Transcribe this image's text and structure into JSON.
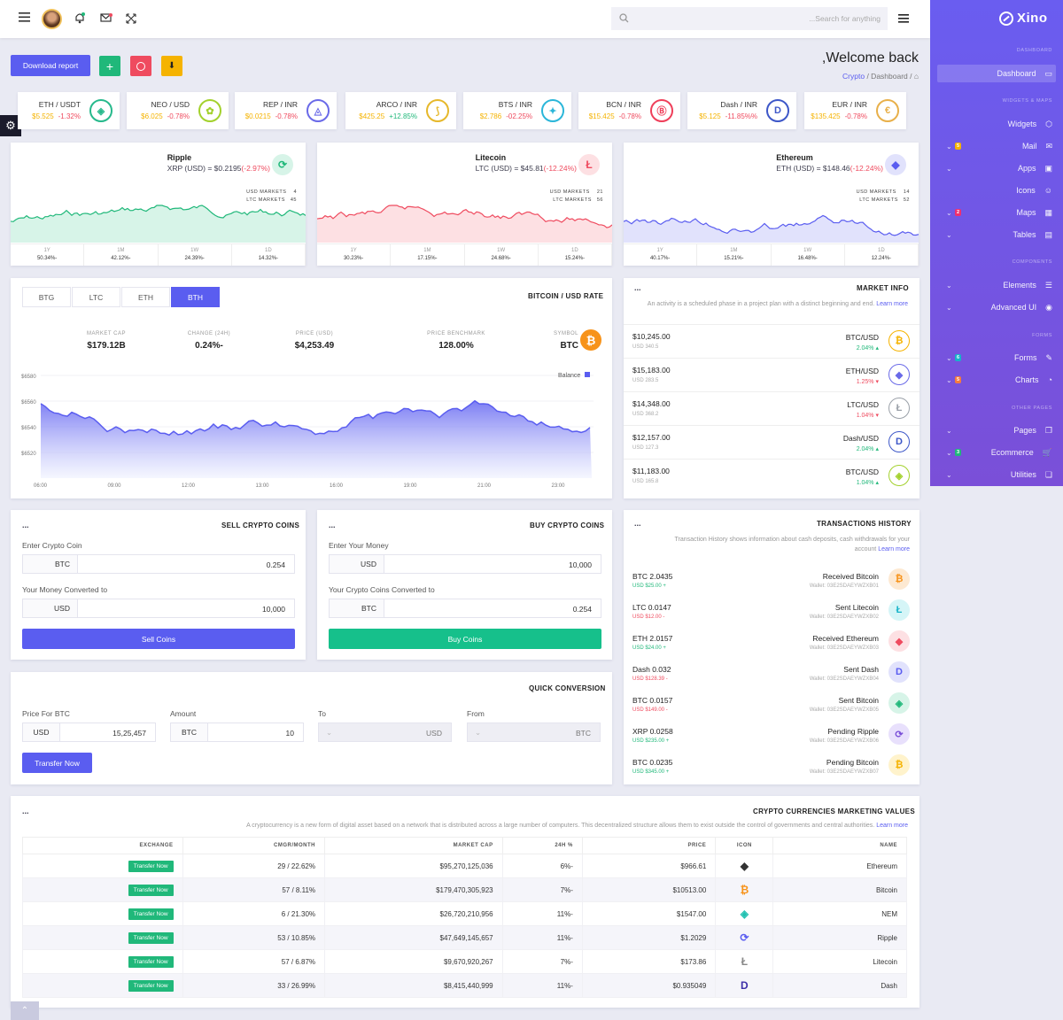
{
  "topbar": {
    "search_placeholder": "...Search for anything"
  },
  "sidebar": {
    "brand": "Xino",
    "sections": {
      "dashboard": "DASHBOARD",
      "widgets": "WIDGETS & MAPS",
      "components": "COMPONENTS",
      "forms": "FORMS",
      "other": "OTHER PAGES"
    },
    "items": [
      {
        "label": "Dashboard"
      },
      {
        "label": "Widgets"
      },
      {
        "label": "Mail",
        "badge": "5"
      },
      {
        "label": "Apps"
      },
      {
        "label": "Icons"
      },
      {
        "label": "Maps",
        "badge": "2"
      },
      {
        "label": "Tables"
      },
      {
        "label": "Elements"
      },
      {
        "label": "Advanced UI"
      },
      {
        "label": "Forms",
        "badge": "6"
      },
      {
        "label": "Charts",
        "badge": "5"
      },
      {
        "label": "Pages"
      },
      {
        "label": "Ecommerce",
        "badge": "3"
      },
      {
        "label": "Utilities"
      }
    ]
  },
  "header": {
    "download": "Download report",
    "welcome": ",Welcome back",
    "crumb1": "Crypto",
    "crumb2": "/ Dashboard /"
  },
  "tickers": [
    {
      "pair": "ETH / USDT",
      "price": "$5.525",
      "change": "-1.32%",
      "color": "#27b98c"
    },
    {
      "pair": "NEO / USD",
      "price": "$6.025",
      "change": "-0.78%",
      "color": "#a3d12d"
    },
    {
      "pair": "REP / INR",
      "price": "$0.0215",
      "change": "-0.78%",
      "color": "#6a6ae8"
    },
    {
      "pair": "ARCO / INR",
      "price": "$425.25",
      "change": "+12.85%",
      "color": "#e6b82b"
    },
    {
      "pair": "BTS / INR",
      "price": "$2.786",
      "change": "-02.25%",
      "color": "#2bb6d9"
    },
    {
      "pair": "BCN / INR",
      "price": "$15.425",
      "change": "-0.78%",
      "color": "#ef3f5a"
    },
    {
      "pair": "Dash / INR",
      "price": "$5.125",
      "change": "-11.85%%",
      "color": "#3d57c8"
    },
    {
      "pair": "EUR / INR",
      "price": "$135.425",
      "change": "-0.78%",
      "color": "#e8b04a"
    }
  ],
  "mini": [
    {
      "name": "Ripple",
      "rate": "XRP (USD) = $0.2195",
      "chg": "(-2.97%)",
      "usd": "4",
      "ltc": "45",
      "stats": [
        [
          "1Y",
          "50.34%-"
        ],
        [
          "1M",
          "42.12%-"
        ],
        [
          "1W",
          "24.39%-"
        ],
        [
          "1D",
          "14.32%-"
        ]
      ]
    },
    {
      "name": "Litecoin",
      "rate": "LTC (USD) = $45.81",
      "chg": "(-12.24%)",
      "usd": "21",
      "ltc": "56",
      "stats": [
        [
          "1Y",
          "30.23%-"
        ],
        [
          "1M",
          "17.15%-"
        ],
        [
          "1W",
          "24.68%-"
        ],
        [
          "1D",
          "15.24%-"
        ]
      ]
    },
    {
      "name": "Ethereum",
      "rate": "ETH (USD) = $148.46",
      "chg": "(-12.24%)",
      "usd": "14",
      "ltc": "52",
      "stats": [
        [
          "1Y",
          "40.17%-"
        ],
        [
          "1M",
          "15.21%-"
        ],
        [
          "1W",
          "16.48%-"
        ],
        [
          "1D",
          "12.24%-"
        ]
      ]
    }
  ],
  "markets_label": {
    "usd": "USD MARKETS",
    "ltc": "LTC MARKETS"
  },
  "btc": {
    "tabs": [
      "BTG",
      "LTC",
      "ETH",
      "BTH"
    ],
    "title": "BITCOIN / USD RATE",
    "stats": [
      [
        "MARKET CAP",
        "$179.12B"
      ],
      [
        "CHANGE (24H)",
        "0.24%-"
      ],
      [
        "PRICE (USD)",
        "$4,253.49"
      ],
      [
        "PRICE BENCHMARK",
        "128.00%"
      ],
      [
        "SYMBOL",
        "BTC"
      ]
    ],
    "legend": "Balance",
    "yticks": [
      "$6580",
      "$6560",
      "$6540",
      "$6520"
    ],
    "xticks": [
      "06:00",
      "09:00",
      "12:00",
      "13:00",
      "16:00",
      "19:00",
      "21:00",
      "23:00"
    ]
  },
  "market_info": {
    "dots": "...",
    "title": "MARKET INFO",
    "desc": "An activity is a scheduled phase in a project plan with a distinct beginning and end.",
    "learn": "Learn more",
    "rows": [
      {
        "price": "$10,245.00",
        "sub": "USD 340.5",
        "pair": "BTC/USD",
        "chg": "2.04% ▴",
        "up": true
      },
      {
        "price": "$15,183.00",
        "sub": "USD 283.5",
        "pair": "ETH/USD",
        "chg": "1.25% ▾",
        "up": false
      },
      {
        "price": "$14,348.00",
        "sub": "USD 368.2",
        "pair": "LTC/USD",
        "chg": "1.04% ▾",
        "up": false
      },
      {
        "price": "$12,157.00",
        "sub": "USD 127.3",
        "pair": "Dash/USD",
        "chg": "2.04% ▴",
        "up": true
      },
      {
        "price": "$11,183.00",
        "sub": "USD 165.8",
        "pair": "BTC/USD",
        "chg": "1.04% ▴",
        "up": true
      }
    ]
  },
  "sell": {
    "dots": "...",
    "title": "SELL CRYPTO COINS",
    "l1": "Enter Crypto Coin",
    "c1": "BTC",
    "v1": "0.254",
    "l2": "Your Money Converted to",
    "c2": "USD",
    "v2": "10,000",
    "btn": "Sell Coins"
  },
  "buy": {
    "dots": "...",
    "title": "BUY CRYPTO COINS",
    "l1": "Enter Your Money",
    "c1": "USD",
    "v1": "10,000",
    "l2": "Your Crypto Coins Converted to",
    "c2": "BTC",
    "v2": "0.254",
    "btn": "Buy Coins"
  },
  "quick": {
    "title": "QUICK CONVERSION",
    "l1": "Price For BTC",
    "c1": "USD",
    "v1": "15,25,457",
    "l2": "Amount",
    "c2": "BTC",
    "v2": "10",
    "l3": "To",
    "v3": "USD",
    "l4": "From",
    "v4": "BTC",
    "btn": "Transfer Now"
  },
  "trans": {
    "dots": "...",
    "title": "TRANSACTIONS HISTORY",
    "desc": "Transaction History shows information about cash deposits, cash withdrawals for your",
    "desc2": "account",
    "learn": "Learn more",
    "rows": [
      {
        "amt": "BTC 2.0435",
        "usd": "USD $25.00 +",
        "type": "Received Bitcoin",
        "wallet": "Wallet: 03E2SDAEYWZXB01",
        "up": true
      },
      {
        "amt": "LTC 0.0147",
        "usd": "USD $12.00 -",
        "type": "Sent Litecoin",
        "wallet": "Wallet: 03E2SDAEYWZXB02",
        "up": false
      },
      {
        "amt": "ETH 2.0157",
        "usd": "USD $24.00 +",
        "type": "Received Ethereum",
        "wallet": "Wallet: 03E2SDAEYWZXB03",
        "up": true
      },
      {
        "amt": "Dash 0.032",
        "usd": "USD $128.39 -",
        "type": "Sent Dash",
        "wallet": "Wallet: 03E2SDAEYWZXB04",
        "up": false
      },
      {
        "amt": "BTC 0.0157",
        "usd": "USD $149.00 -",
        "type": "Sent Bitcoin",
        "wallet": "Wallet: 03E2SDAEYWZXB05",
        "up": false
      },
      {
        "amt": "XRP 0.0258",
        "usd": "USD $235.00 +",
        "type": "Pending Ripple",
        "wallet": "Wallet: 03E2SDAEYWZXB06",
        "up": true
      },
      {
        "amt": "BTC 0.0235",
        "usd": "USD $345.00 +",
        "type": "Pending Bitcoin",
        "wallet": "Wallet: 03E2SDAEYWZXB07",
        "up": true
      }
    ]
  },
  "values": {
    "dots": "...",
    "title": "CRYPTO CURRENCIES MARKETING VALUES",
    "desc": "A cryptocurrency is a new form of digital asset based on a network that is distributed across a large number of computers. This decentralized structure allows them to exist outside the control of governments and central authorities.",
    "learn": "Learn more",
    "headers": [
      "EXCHANGE",
      "CMGR/MONTH",
      "MARKET CAP",
      "24H %",
      "PRICE",
      "ICON",
      "NAME"
    ],
    "rows": [
      {
        "ex": "Transfer Now",
        "cmgr": "29 / 22.62%",
        "cap": "$95,270,125,036",
        "h": "6%-",
        "price": "$966.61",
        "name": "Ethereum"
      },
      {
        "ex": "Transfer Now",
        "cmgr": "57 / 8.11%",
        "cap": "$179,470,305,923",
        "h": "7%-",
        "price": "$10513.00",
        "name": "Bitcoin"
      },
      {
        "ex": "Transfer Now",
        "cmgr": "6 / 21.30%",
        "cap": "$26,720,210,956",
        "h": "11%-",
        "price": "$1547.00",
        "name": "NEM"
      },
      {
        "ex": "Transfer Now",
        "cmgr": "53 / 10.85%",
        "cap": "$47,649,145,657",
        "h": "11%-",
        "price": "$1.2029",
        "name": "Ripple"
      },
      {
        "ex": "Transfer Now",
        "cmgr": "57 / 6.87%",
        "cap": "$9,670,920,267",
        "h": "7%-",
        "price": "$173.86",
        "name": "Litecoin"
      },
      {
        "ex": "Transfer Now",
        "cmgr": "33 / 26.99%",
        "cap": "$8,415,440,999",
        "h": "11%-",
        "price": "$0.935049",
        "name": "Dash"
      }
    ]
  },
  "colors": {
    "accent": "#5a5df0",
    "green": "#20b87a",
    "red": "#ef4b5f",
    "yellow": "#f5b301"
  }
}
